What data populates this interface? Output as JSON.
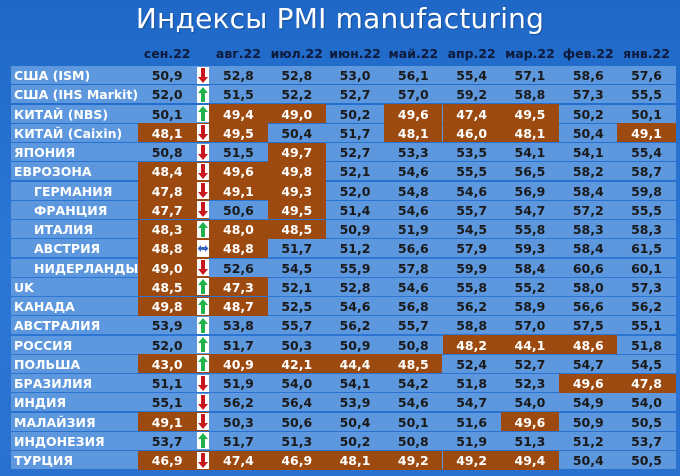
{
  "title": "Индексы PMI manufacturing",
  "colors": {
    "background": "#2b77d6",
    "row_band": "#5d97dd",
    "highlight": "#9c4a0f",
    "header_text": "#0e1a3a",
    "label_text": "#ffffff",
    "up_arrow": "#22b24c",
    "down_arrow": "#c8161d",
    "flat_arrow": "#3a64c0"
  },
  "chart_data": {
    "type": "table",
    "columns": [
      "сен.22",
      "авг.22",
      "июл.22",
      "июн.22",
      "май.22",
      "апр.22",
      "мар.22",
      "фев.22",
      "янв.22"
    ],
    "rows": [
      {
        "label": "США (ISM)",
        "indent": false,
        "values": [
          "50,9",
          "52,8",
          "52,8",
          "53,0",
          "56,1",
          "55,4",
          "57,1",
          "58,6",
          "57,6"
        ],
        "trend": "down",
        "highlight": []
      },
      {
        "label": "США (IHS Markit)",
        "indent": false,
        "values": [
          "52,0",
          "51,5",
          "52,2",
          "52,7",
          "57,0",
          "59,2",
          "58,8",
          "57,3",
          "55,5"
        ],
        "trend": "up",
        "highlight": []
      },
      {
        "label": "КИТАЙ (NBS)",
        "indent": false,
        "values": [
          "50,1",
          "49,4",
          "49,0",
          "50,2",
          "49,6",
          "47,4",
          "49,5",
          "50,2",
          "50,1"
        ],
        "trend": "up",
        "highlight": [
          1,
          2,
          4,
          5,
          6
        ]
      },
      {
        "label": "КИТАЙ (Caixin)",
        "indent": false,
        "values": [
          "48,1",
          "49,5",
          "50,4",
          "51,7",
          "48,1",
          "46,0",
          "48,1",
          "50,4",
          "49,1"
        ],
        "trend": "down",
        "highlight": [
          0,
          1,
          4,
          5,
          6,
          8
        ]
      },
      {
        "label": "ЯПОНИЯ",
        "indent": false,
        "values": [
          "50,8",
          "51,5",
          "49,7",
          "52,7",
          "53,3",
          "53,5",
          "54,1",
          "54,1",
          "55,4"
        ],
        "trend": "down",
        "highlight": [
          2
        ]
      },
      {
        "label": "ЕВРОЗОНА",
        "indent": false,
        "values": [
          "48,4",
          "49,6",
          "49,8",
          "52,1",
          "54,6",
          "55,5",
          "56,5",
          "58,2",
          "58,7"
        ],
        "trend": "down",
        "highlight": [
          0,
          1,
          2
        ]
      },
      {
        "label": "ГЕРМАНИЯ",
        "indent": true,
        "values": [
          "47,8",
          "49,1",
          "49,3",
          "52,0",
          "54,8",
          "54,6",
          "56,9",
          "58,4",
          "59,8"
        ],
        "trend": "down",
        "highlight": [
          0,
          1,
          2
        ]
      },
      {
        "label": "ФРАНЦИЯ",
        "indent": true,
        "values": [
          "47,7",
          "50,6",
          "49,5",
          "51,4",
          "54,6",
          "55,7",
          "54,7",
          "57,2",
          "55,5"
        ],
        "trend": "down",
        "highlight": [
          0,
          2
        ]
      },
      {
        "label": "ИТАЛИЯ",
        "indent": true,
        "values": [
          "48,3",
          "48,0",
          "48,5",
          "50,9",
          "51,9",
          "54,5",
          "55,8",
          "58,3",
          "58,3"
        ],
        "trend": "up",
        "highlight": [
          0,
          1,
          2
        ]
      },
      {
        "label": "АВСТРИЯ",
        "indent": true,
        "values": [
          "48,8",
          "48,8",
          "51,7",
          "51,2",
          "56,6",
          "57,9",
          "59,3",
          "58,4",
          "61,5"
        ],
        "trend": "flat",
        "highlight": [
          0,
          1
        ]
      },
      {
        "label": "НИДЕРЛАНДЫ",
        "indent": true,
        "values": [
          "49,0",
          "52,6",
          "54,5",
          "55,9",
          "57,8",
          "59,9",
          "58,4",
          "60,6",
          "60,1"
        ],
        "trend": "down",
        "highlight": [
          0
        ]
      },
      {
        "label": "UK",
        "indent": false,
        "values": [
          "48,5",
          "47,3",
          "52,1",
          "52,8",
          "54,6",
          "55,8",
          "55,2",
          "58,0",
          "57,3"
        ],
        "trend": "up",
        "highlight": [
          0,
          1
        ]
      },
      {
        "label": "КАНАДА",
        "indent": false,
        "values": [
          "49,8",
          "48,7",
          "52,5",
          "54,6",
          "56,8",
          "56,2",
          "58,9",
          "56,6",
          "56,2"
        ],
        "trend": "up",
        "highlight": [
          0,
          1
        ]
      },
      {
        "label": "АВСТРАЛИЯ",
        "indent": false,
        "values": [
          "53,9",
          "53,8",
          "55,7",
          "56,2",
          "55,7",
          "58,8",
          "57,0",
          "57,5",
          "55,1"
        ],
        "trend": "up",
        "highlight": []
      },
      {
        "label": "РОССИЯ",
        "indent": false,
        "values": [
          "52,0",
          "51,7",
          "50,3",
          "50,9",
          "50,8",
          "48,2",
          "44,1",
          "48,6",
          "51,8"
        ],
        "trend": "up",
        "highlight": [
          5,
          6,
          7
        ]
      },
      {
        "label": "ПОЛЬША",
        "indent": false,
        "values": [
          "43,0",
          "40,9",
          "42,1",
          "44,4",
          "48,5",
          "52,4",
          "52,7",
          "54,7",
          "54,5"
        ],
        "trend": "up",
        "highlight": [
          0,
          1,
          2,
          3,
          4
        ]
      },
      {
        "label": "БРАЗИЛИЯ",
        "indent": false,
        "values": [
          "51,1",
          "51,9",
          "54,0",
          "54,1",
          "54,2",
          "51,8",
          "52,3",
          "49,6",
          "47,8"
        ],
        "trend": "down",
        "highlight": [
          7,
          8
        ]
      },
      {
        "label": "ИНДИЯ",
        "indent": false,
        "values": [
          "55,1",
          "56,2",
          "56,4",
          "53,9",
          "54,6",
          "54,7",
          "54,0",
          "54,9",
          "54,0"
        ],
        "trend": "down",
        "highlight": []
      },
      {
        "label": "МАЛАЙЗИЯ",
        "indent": false,
        "values": [
          "49,1",
          "50,3",
          "50,6",
          "50,4",
          "50,1",
          "51,6",
          "49,6",
          "50,9",
          "50,5"
        ],
        "trend": "down",
        "highlight": [
          0,
          6
        ]
      },
      {
        "label": "ИНДОНЕЗИЯ",
        "indent": false,
        "values": [
          "53,7",
          "51,7",
          "51,3",
          "50,2",
          "50,8",
          "51,9",
          "51,3",
          "51,2",
          "53,7"
        ],
        "trend": "up",
        "highlight": []
      },
      {
        "label": "ТУРЦИЯ",
        "indent": false,
        "values": [
          "46,9",
          "47,4",
          "46,9",
          "48,1",
          "49,2",
          "49,2",
          "49,4",
          "50,4",
          "50,5"
        ],
        "trend": "down",
        "highlight": [
          0,
          1,
          2,
          3,
          4,
          5,
          6
        ]
      }
    ]
  }
}
